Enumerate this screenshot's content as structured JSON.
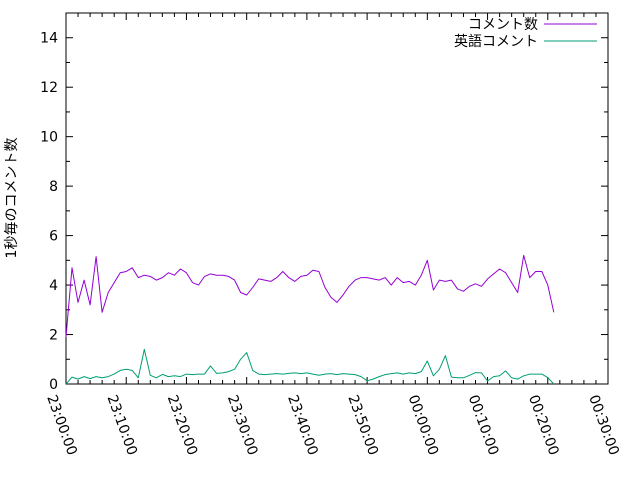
{
  "figure": {
    "background": "#ffffff",
    "border_color": "#000000",
    "text_color": "#000000"
  },
  "chart_data": {
    "type": "line",
    "title": "",
    "xlabel": "",
    "ylabel": "1秒毎のコメント数",
    "grid": false,
    "legend_position": "top-right-inside",
    "x_axis": {
      "tick_labels": [
        "23:00:00",
        "23:10:00",
        "23:20:00",
        "23:30:00",
        "23:40:00",
        "23:50:00",
        "00:00:00",
        "00:10:00",
        "00:20:00",
        "00:30:00"
      ],
      "major_tick_interval_minutes": 10,
      "minor_tick_interval_minutes": 2,
      "range_minutes": [
        0,
        90
      ],
      "labels_rotated": true
    },
    "y_axis": {
      "ticks": [
        0,
        2,
        4,
        6,
        8,
        10,
        12,
        14
      ],
      "minor_tick_step": 1,
      "ylim": [
        0,
        15
      ]
    },
    "series": [
      {
        "name": "コメント数",
        "color": "#9400d3",
        "x_start_minute": 0,
        "x_step_minutes": 1,
        "values": [
          1.9,
          4.7,
          3.3,
          4.2,
          3.2,
          5.15,
          2.9,
          3.7,
          4.1,
          4.5,
          4.55,
          4.7,
          4.3,
          4.4,
          4.35,
          4.2,
          4.3,
          4.5,
          4.4,
          4.65,
          4.5,
          4.1,
          4.0,
          4.35,
          4.45,
          4.4,
          4.4,
          4.35,
          4.2,
          3.7,
          3.6,
          3.9,
          4.25,
          4.2,
          4.15,
          4.3,
          4.55,
          4.3,
          4.15,
          4.35,
          4.4,
          4.6,
          4.55,
          3.9,
          3.5,
          3.3,
          3.6,
          3.95,
          4.2,
          4.3,
          4.3,
          4.25,
          4.2,
          4.3,
          4.0,
          4.3,
          4.1,
          4.15,
          4.0,
          4.4,
          5.0,
          3.8,
          4.2,
          4.15,
          4.2,
          3.85,
          3.75,
          3.95,
          4.05,
          3.95,
          4.25,
          4.45,
          4.65,
          4.5,
          4.1,
          3.7,
          5.2,
          4.3,
          4.55,
          4.55,
          4.0,
          2.9
        ]
      },
      {
        "name": "英語コメント",
        "color": "#009e73",
        "x_start_minute": 0,
        "x_step_minutes": 1,
        "values": [
          0.0,
          0.28,
          0.2,
          0.3,
          0.22,
          0.3,
          0.25,
          0.3,
          0.4,
          0.55,
          0.6,
          0.55,
          0.25,
          1.4,
          0.35,
          0.25,
          0.39,
          0.3,
          0.33,
          0.3,
          0.4,
          0.38,
          0.4,
          0.4,
          0.73,
          0.43,
          0.45,
          0.5,
          0.6,
          1.0,
          1.27,
          0.55,
          0.4,
          0.38,
          0.4,
          0.42,
          0.4,
          0.43,
          0.45,
          0.42,
          0.45,
          0.4,
          0.35,
          0.4,
          0.42,
          0.38,
          0.42,
          0.4,
          0.38,
          0.3,
          0.13,
          0.2,
          0.3,
          0.38,
          0.42,
          0.45,
          0.4,
          0.45,
          0.42,
          0.5,
          0.93,
          0.33,
          0.6,
          1.15,
          0.28,
          0.25,
          0.25,
          0.35,
          0.46,
          0.45,
          0.12,
          0.3,
          0.33,
          0.53,
          0.25,
          0.2,
          0.33,
          0.4,
          0.4,
          0.4,
          0.26,
          0.0
        ]
      }
    ]
  }
}
